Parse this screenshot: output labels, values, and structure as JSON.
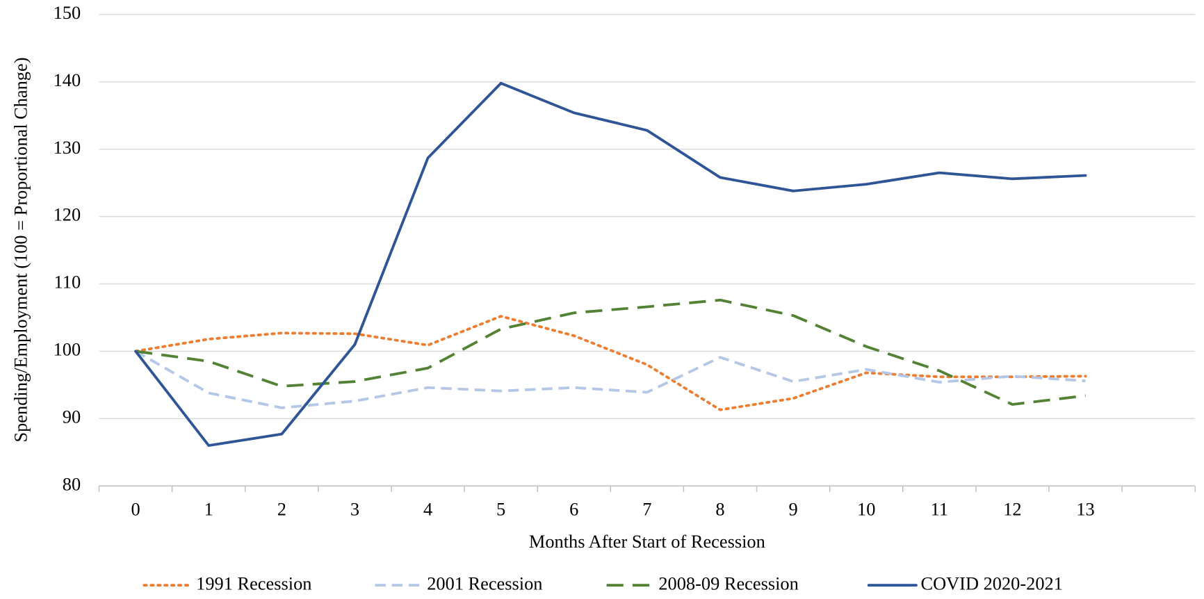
{
  "chart_data": {
    "type": "line",
    "x_label": "Months After Start of Recession",
    "y_label": "Spending/Employment (100 = Proportional Change)",
    "categories": [
      "0",
      "1",
      "2",
      "3",
      "4",
      "5",
      "6",
      "7",
      "8",
      "9",
      "10",
      "11",
      "12",
      "13",
      null
    ],
    "series": [
      {
        "name": "1991 Recession",
        "color": "#ed7d31",
        "dash": "dot",
        "values": [
          100,
          101.8,
          102.7,
          102.6,
          100.9,
          105.2,
          102.3,
          98.0,
          91.3,
          93.0,
          96.8,
          96.2,
          96.2,
          96.3,
          null
        ]
      },
      {
        "name": "2001 Recession",
        "color": "#b4c7e7",
        "dash": "dash",
        "values": [
          100,
          93.8,
          91.6,
          92.6,
          94.6,
          94.1,
          94.6,
          93.9,
          99.1,
          95.5,
          97.3,
          95.4,
          96.3,
          95.6,
          null
        ]
      },
      {
        "name": "2008-09 Recession",
        "color": "#548235",
        "dash": "longdash",
        "values": [
          100,
          98.5,
          94.8,
          95.5,
          97.5,
          103.3,
          105.7,
          106.6,
          107.6,
          105.3,
          100.7,
          97.1,
          92.1,
          93.4,
          null
        ]
      },
      {
        "name": "COVID 2020-2021",
        "color": "#2f5597",
        "dash": "solid",
        "values": [
          100,
          86.0,
          87.7,
          101.0,
          128.7,
          139.8,
          135.4,
          132.8,
          125.8,
          123.8,
          124.8,
          126.5,
          125.6,
          126.1,
          null
        ]
      }
    ],
    "ylim": [
      80,
      150
    ],
    "yticks": [
      80,
      90,
      100,
      110,
      120,
      130,
      140,
      150
    ],
    "grid": true,
    "legend": "bottom"
  }
}
